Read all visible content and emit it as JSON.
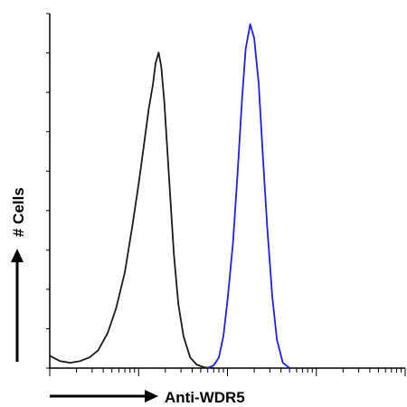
{
  "chart_data": {
    "type": "line",
    "title": "",
    "xlabel": "Anti-WDR5",
    "ylabel": "# Cells",
    "xscale": "log",
    "xlim": [
      1,
      10000
    ],
    "ylim": [
      0,
      100
    ],
    "grid": false,
    "series": [
      {
        "color": "#1a1a1a",
        "x": [
          1.0,
          1.3,
          1.7,
          2.2,
          2.8,
          3.5,
          4.5,
          5.6,
          7.0,
          8.5,
          10.0,
          11.5,
          13.0,
          14.5,
          15.5,
          16.8,
          18.0,
          19.5,
          21.0,
          23.0,
          25.0,
          28.0,
          32.0,
          38.0,
          45.0,
          55.0,
          70.0
        ],
        "y": [
          3.5,
          2.0,
          1.5,
          2.0,
          3.0,
          5.0,
          10.0,
          17.0,
          27.0,
          40.0,
          52.0,
          63.0,
          73.0,
          80.0,
          86.0,
          89.0,
          85.0,
          75.0,
          62.0,
          46.0,
          32.0,
          18.0,
          9.0,
          3.0,
          1.0,
          0.2,
          0.0
        ]
      },
      {
        "color": "#1f1fe0",
        "x": [
          60.0,
          70.0,
          80.0,
          90.0,
          100.0,
          115.0,
          130.0,
          145.0,
          160.0,
          180.0,
          200.0,
          225.0,
          250.0,
          280.0,
          320.0,
          360.0,
          420.0,
          500.0
        ],
        "y": [
          0.0,
          0.8,
          3.0,
          9.0,
          19.0,
          35.0,
          55.0,
          75.0,
          90.0,
          97.0,
          93.0,
          80.0,
          60.0,
          40.0,
          20.0,
          8.0,
          1.5,
          0.0
        ]
      }
    ]
  }
}
